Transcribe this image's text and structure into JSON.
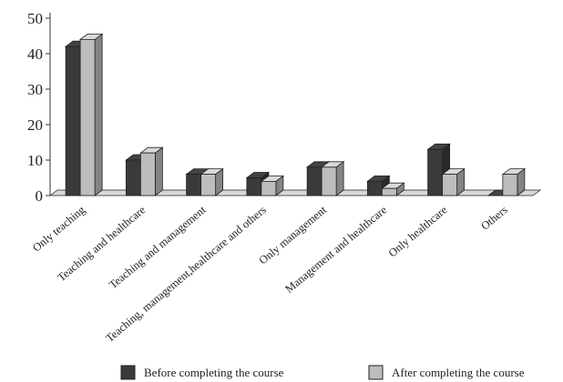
{
  "chart_data": {
    "type": "bar",
    "categories": [
      "Only teaching",
      "Teaching and healthcare",
      "Teaching and management",
      "Teaching, management,healthcare and others",
      "Only management",
      "Management and healthcare",
      "Only healthcare",
      "Others"
    ],
    "series": [
      {
        "name": "Before completing the course",
        "values": [
          42,
          10,
          6,
          5,
          8,
          4,
          13,
          0
        ],
        "color": "#3a3a3a"
      },
      {
        "name": "After completing the course",
        "values": [
          44,
          12,
          6,
          4,
          8,
          2,
          6,
          6
        ],
        "color": "#bdbdbd"
      }
    ],
    "yticks": [
      0,
      10,
      20,
      30,
      40,
      50
    ],
    "ylim": [
      0,
      50
    ],
    "title": "",
    "xlabel": "",
    "ylabel": "",
    "legend_position": "bottom",
    "grid": false,
    "style": "3d-bar"
  }
}
